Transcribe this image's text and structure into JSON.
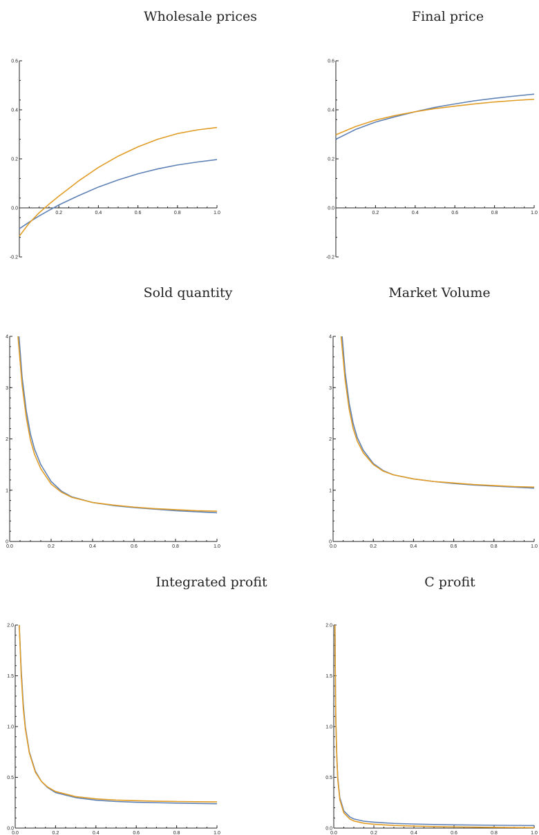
{
  "chart_data": [
    {
      "type": "line",
      "title": "Wholesale prices",
      "xlim": [
        0,
        1
      ],
      "ylim": [
        -0.2,
        0.6
      ],
      "xticks": [
        0.2,
        0.4,
        0.6,
        0.8,
        1.0
      ],
      "xtick_labels": [
        "0.2",
        "0.4",
        "0.6",
        "0.8",
        "1.0"
      ],
      "yticks": [
        -0.2,
        0.2,
        0.4,
        0.6
      ],
      "ytick_labels": [
        "-0.2",
        "0.2",
        "0.4",
        "0.6"
      ],
      "origin_label": "0.0",
      "x_axis_at": 0,
      "colors": [
        "#5e81b5",
        "#e19c24"
      ],
      "series": [
        {
          "x": [
            0.0,
            0.05,
            0.1,
            0.15,
            0.2,
            0.3,
            0.4,
            0.5,
            0.6,
            0.7,
            0.8,
            0.9,
            1.0
          ],
          "y": [
            -0.085,
            -0.058,
            -0.033,
            -0.01,
            0.012,
            0.05,
            0.085,
            0.114,
            0.139,
            0.159,
            0.175,
            0.187,
            0.197
          ]
        },
        {
          "x": [
            0.0,
            0.05,
            0.1,
            0.15,
            0.2,
            0.3,
            0.4,
            0.5,
            0.6,
            0.7,
            0.8,
            0.9,
            1.0
          ],
          "y": [
            -0.115,
            -0.062,
            -0.02,
            0.015,
            0.048,
            0.11,
            0.165,
            0.211,
            0.249,
            0.28,
            0.303,
            0.318,
            0.328
          ]
        }
      ]
    },
    {
      "type": "line",
      "title": "Final price",
      "xlim": [
        0,
        1
      ],
      "ylim": [
        -0.2,
        0.6
      ],
      "xticks": [
        0.2,
        0.4,
        0.6,
        0.8,
        1.0
      ],
      "xtick_labels": [
        "0.2",
        "0.4",
        "0.6",
        "0.8",
        "1.0"
      ],
      "yticks": [
        -0.2,
        0.2,
        0.4,
        0.6
      ],
      "ytick_labels": [
        "-0.2",
        "0.2",
        "0.4",
        "0.6"
      ],
      "origin_label": "0.0",
      "x_axis_at": 0,
      "colors": [
        "#5e81b5",
        "#e19c24"
      ],
      "series": [
        {
          "x": [
            0.0,
            0.1,
            0.2,
            0.3,
            0.4,
            0.5,
            0.6,
            0.7,
            0.8,
            0.9,
            1.0
          ],
          "y": [
            0.28,
            0.32,
            0.35,
            0.372,
            0.392,
            0.41,
            0.424,
            0.437,
            0.447,
            0.456,
            0.464
          ]
        },
        {
          "x": [
            0.0,
            0.1,
            0.2,
            0.3,
            0.4,
            0.5,
            0.6,
            0.7,
            0.8,
            0.9,
            1.0
          ],
          "y": [
            0.298,
            0.332,
            0.358,
            0.377,
            0.392,
            0.405,
            0.415,
            0.424,
            0.432,
            0.438,
            0.443
          ]
        }
      ]
    },
    {
      "type": "line",
      "title": "Sold quantity",
      "xlim": [
        0,
        1
      ],
      "ylim": [
        0,
        4
      ],
      "xticks": [
        0.0,
        0.2,
        0.4,
        0.6,
        0.8,
        1.0
      ],
      "xtick_labels": [
        "0.0",
        "0.2",
        "0.4",
        "0.6",
        "0.8",
        "1.0"
      ],
      "yticks": [
        1,
        2,
        3,
        4
      ],
      "ytick_labels": [
        "1",
        "2",
        "3",
        "4"
      ],
      "origin_label": "0",
      "x_axis_at": 0,
      "colors": [
        "#5e81b5",
        "#e19c24"
      ],
      "series": [
        {
          "x": [
            0.045,
            0.06,
            0.08,
            0.1,
            0.12,
            0.15,
            0.2,
            0.25,
            0.3,
            0.4,
            0.5,
            0.6,
            0.7,
            0.8,
            0.9,
            1.0
          ],
          "y": [
            4.0,
            3.2,
            2.55,
            2.1,
            1.8,
            1.5,
            1.17,
            0.98,
            0.87,
            0.76,
            0.7,
            0.66,
            0.63,
            0.6,
            0.58,
            0.56
          ]
        },
        {
          "x": [
            0.04,
            0.06,
            0.08,
            0.1,
            0.12,
            0.15,
            0.2,
            0.25,
            0.3,
            0.4,
            0.5,
            0.6,
            0.7,
            0.8,
            0.9,
            1.0
          ],
          "y": [
            4.0,
            3.05,
            2.42,
            1.98,
            1.7,
            1.42,
            1.12,
            0.96,
            0.86,
            0.76,
            0.71,
            0.67,
            0.64,
            0.62,
            0.6,
            0.59
          ]
        }
      ]
    },
    {
      "type": "line",
      "title": "Market Volume",
      "xlim": [
        0,
        1
      ],
      "ylim": [
        0,
        4
      ],
      "xticks": [
        0.0,
        0.2,
        0.4,
        0.6,
        0.8,
        1.0
      ],
      "xtick_labels": [
        "0.0",
        "0.2",
        "0.4",
        "0.6",
        "0.8",
        "1.0"
      ],
      "yticks": [
        1,
        2,
        3,
        4
      ],
      "ytick_labels": [
        "1",
        "2",
        "3",
        "4"
      ],
      "origin_label": "0",
      "x_axis_at": 0,
      "colors": [
        "#5e81b5",
        "#e19c24"
      ],
      "series": [
        {
          "x": [
            0.045,
            0.06,
            0.08,
            0.1,
            0.12,
            0.15,
            0.2,
            0.25,
            0.3,
            0.4,
            0.5,
            0.6,
            0.7,
            0.8,
            0.9,
            1.0
          ],
          "y": [
            4.0,
            3.3,
            2.7,
            2.3,
            2.03,
            1.78,
            1.52,
            1.38,
            1.3,
            1.22,
            1.17,
            1.13,
            1.1,
            1.08,
            1.06,
            1.04
          ]
        },
        {
          "x": [
            0.04,
            0.06,
            0.08,
            0.1,
            0.12,
            0.15,
            0.2,
            0.25,
            0.3,
            0.4,
            0.5,
            0.6,
            0.7,
            0.8,
            0.9,
            1.0
          ],
          "y": [
            4.0,
            3.15,
            2.58,
            2.2,
            1.96,
            1.73,
            1.5,
            1.37,
            1.3,
            1.22,
            1.17,
            1.14,
            1.11,
            1.09,
            1.07,
            1.06
          ]
        }
      ]
    },
    {
      "type": "line",
      "title": "Integrated profit",
      "xlim": [
        0,
        1
      ],
      "ylim": [
        0,
        2
      ],
      "xticks": [
        0.0,
        0.2,
        0.4,
        0.6,
        0.8,
        1.0
      ],
      "xtick_labels": [
        "0.0",
        "0.2",
        "0.4",
        "0.6",
        "0.8",
        "1.0"
      ],
      "yticks": [
        0.5,
        1.0,
        1.5,
        2.0
      ],
      "ytick_labels": [
        "0.5",
        "1.0",
        "1.5",
        "2.0"
      ],
      "origin_label": "0.0",
      "x_axis_at": 0,
      "colors": [
        "#5e81b5",
        "#e19c24"
      ],
      "series": [
        {
          "x": [
            0.02,
            0.03,
            0.04,
            0.05,
            0.07,
            0.1,
            0.13,
            0.16,
            0.2,
            0.3,
            0.4,
            0.5,
            0.6,
            0.7,
            0.8,
            0.9,
            1.0
          ],
          "y": [
            2.0,
            1.55,
            1.22,
            1.0,
            0.75,
            0.56,
            0.46,
            0.4,
            0.35,
            0.3,
            0.275,
            0.262,
            0.255,
            0.25,
            0.246,
            0.243,
            0.24
          ]
        },
        {
          "x": [
            0.02,
            0.03,
            0.04,
            0.05,
            0.07,
            0.1,
            0.13,
            0.16,
            0.2,
            0.3,
            0.4,
            0.5,
            0.6,
            0.7,
            0.8,
            0.9,
            1.0
          ],
          "y": [
            2.0,
            1.5,
            1.18,
            0.98,
            0.74,
            0.55,
            0.46,
            0.405,
            0.36,
            0.31,
            0.288,
            0.276,
            0.27,
            0.265,
            0.262,
            0.26,
            0.258
          ]
        }
      ]
    },
    {
      "type": "line",
      "title": "C profit",
      "xlim": [
        0,
        1
      ],
      "ylim": [
        0,
        2
      ],
      "xticks": [
        0.0,
        0.2,
        0.4,
        0.6,
        0.8,
        1.0
      ],
      "xtick_labels": [
        "0.0",
        "0.2",
        "0.4",
        "0.6",
        "0.8",
        "1.0"
      ],
      "yticks": [
        0.5,
        1.0,
        1.5,
        2.0
      ],
      "ytick_labels": [
        "0.5",
        "1.0",
        "1.5",
        "2.0"
      ],
      "origin_label": "0.0",
      "x_axis_at": 0,
      "colors": [
        "#5e81b5",
        "#e19c24"
      ],
      "series": [
        {
          "x": [
            0.006,
            0.008,
            0.01,
            0.015,
            0.02,
            0.03,
            0.05,
            0.08,
            0.1,
            0.15,
            0.2,
            0.3,
            0.4,
            0.5,
            0.6,
            0.8,
            1.0
          ],
          "y": [
            2.0,
            1.5,
            1.1,
            0.72,
            0.5,
            0.3,
            0.17,
            0.11,
            0.09,
            0.068,
            0.058,
            0.046,
            0.04,
            0.035,
            0.032,
            0.028,
            0.025
          ]
        },
        {
          "x": [
            0.006,
            0.008,
            0.01,
            0.015,
            0.02,
            0.03,
            0.05,
            0.08,
            0.1,
            0.15,
            0.2,
            0.3,
            0.4,
            0.5,
            0.6,
            0.8,
            1.0
          ],
          "y": [
            2.0,
            1.48,
            1.08,
            0.7,
            0.48,
            0.28,
            0.15,
            0.09,
            0.07,
            0.048,
            0.038,
            0.026,
            0.02,
            0.015,
            0.012,
            0.007,
            0.004
          ]
        }
      ]
    }
  ]
}
